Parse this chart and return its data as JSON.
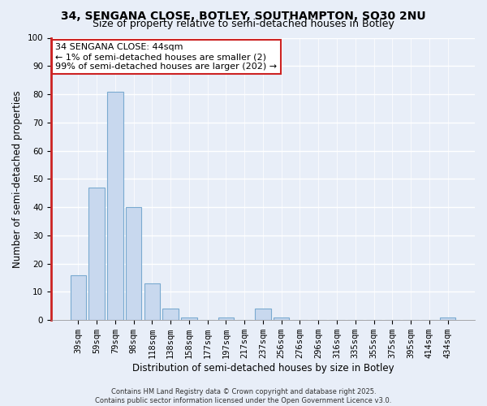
{
  "title": "34, SENGANA CLOSE, BOTLEY, SOUTHAMPTON, SO30 2NU",
  "subtitle": "Size of property relative to semi-detached houses in Botley",
  "xlabel": "Distribution of semi-detached houses by size in Botley",
  "ylabel": "Number of semi-detached properties",
  "categories": [
    "39sqm",
    "59sqm",
    "79sqm",
    "98sqm",
    "118sqm",
    "138sqm",
    "158sqm",
    "177sqm",
    "197sqm",
    "217sqm",
    "237sqm",
    "256sqm",
    "276sqm",
    "296sqm",
    "316sqm",
    "335sqm",
    "355sqm",
    "375sqm",
    "395sqm",
    "414sqm",
    "434sqm"
  ],
  "values": [
    16,
    47,
    81,
    40,
    13,
    4,
    1,
    0,
    1,
    0,
    4,
    1,
    0,
    0,
    0,
    0,
    0,
    0,
    0,
    0,
    1
  ],
  "bar_color": "#c8d8ee",
  "bar_edge_color": "#7aaad0",
  "highlight_index": 0,
  "red_line_color": "#cc2222",
  "ylim": [
    0,
    100
  ],
  "yticks": [
    0,
    10,
    20,
    30,
    40,
    50,
    60,
    70,
    80,
    90,
    100
  ],
  "annotation_title": "34 SENGANA CLOSE: 44sqm",
  "annotation_line1": "← 1% of semi-detached houses are smaller (2)",
  "annotation_line2": "99% of semi-detached houses are larger (202) →",
  "footer_line1": "Contains HM Land Registry data © Crown copyright and database right 2025.",
  "footer_line2": "Contains public sector information licensed under the Open Government Licence v3.0.",
  "bg_color": "#e8eef8",
  "grid_color": "#ffffff",
  "title_fontsize": 10,
  "subtitle_fontsize": 9,
  "axis_label_fontsize": 8.5,
  "tick_fontsize": 7.5,
  "annotation_fontsize": 8,
  "footer_fontsize": 6
}
